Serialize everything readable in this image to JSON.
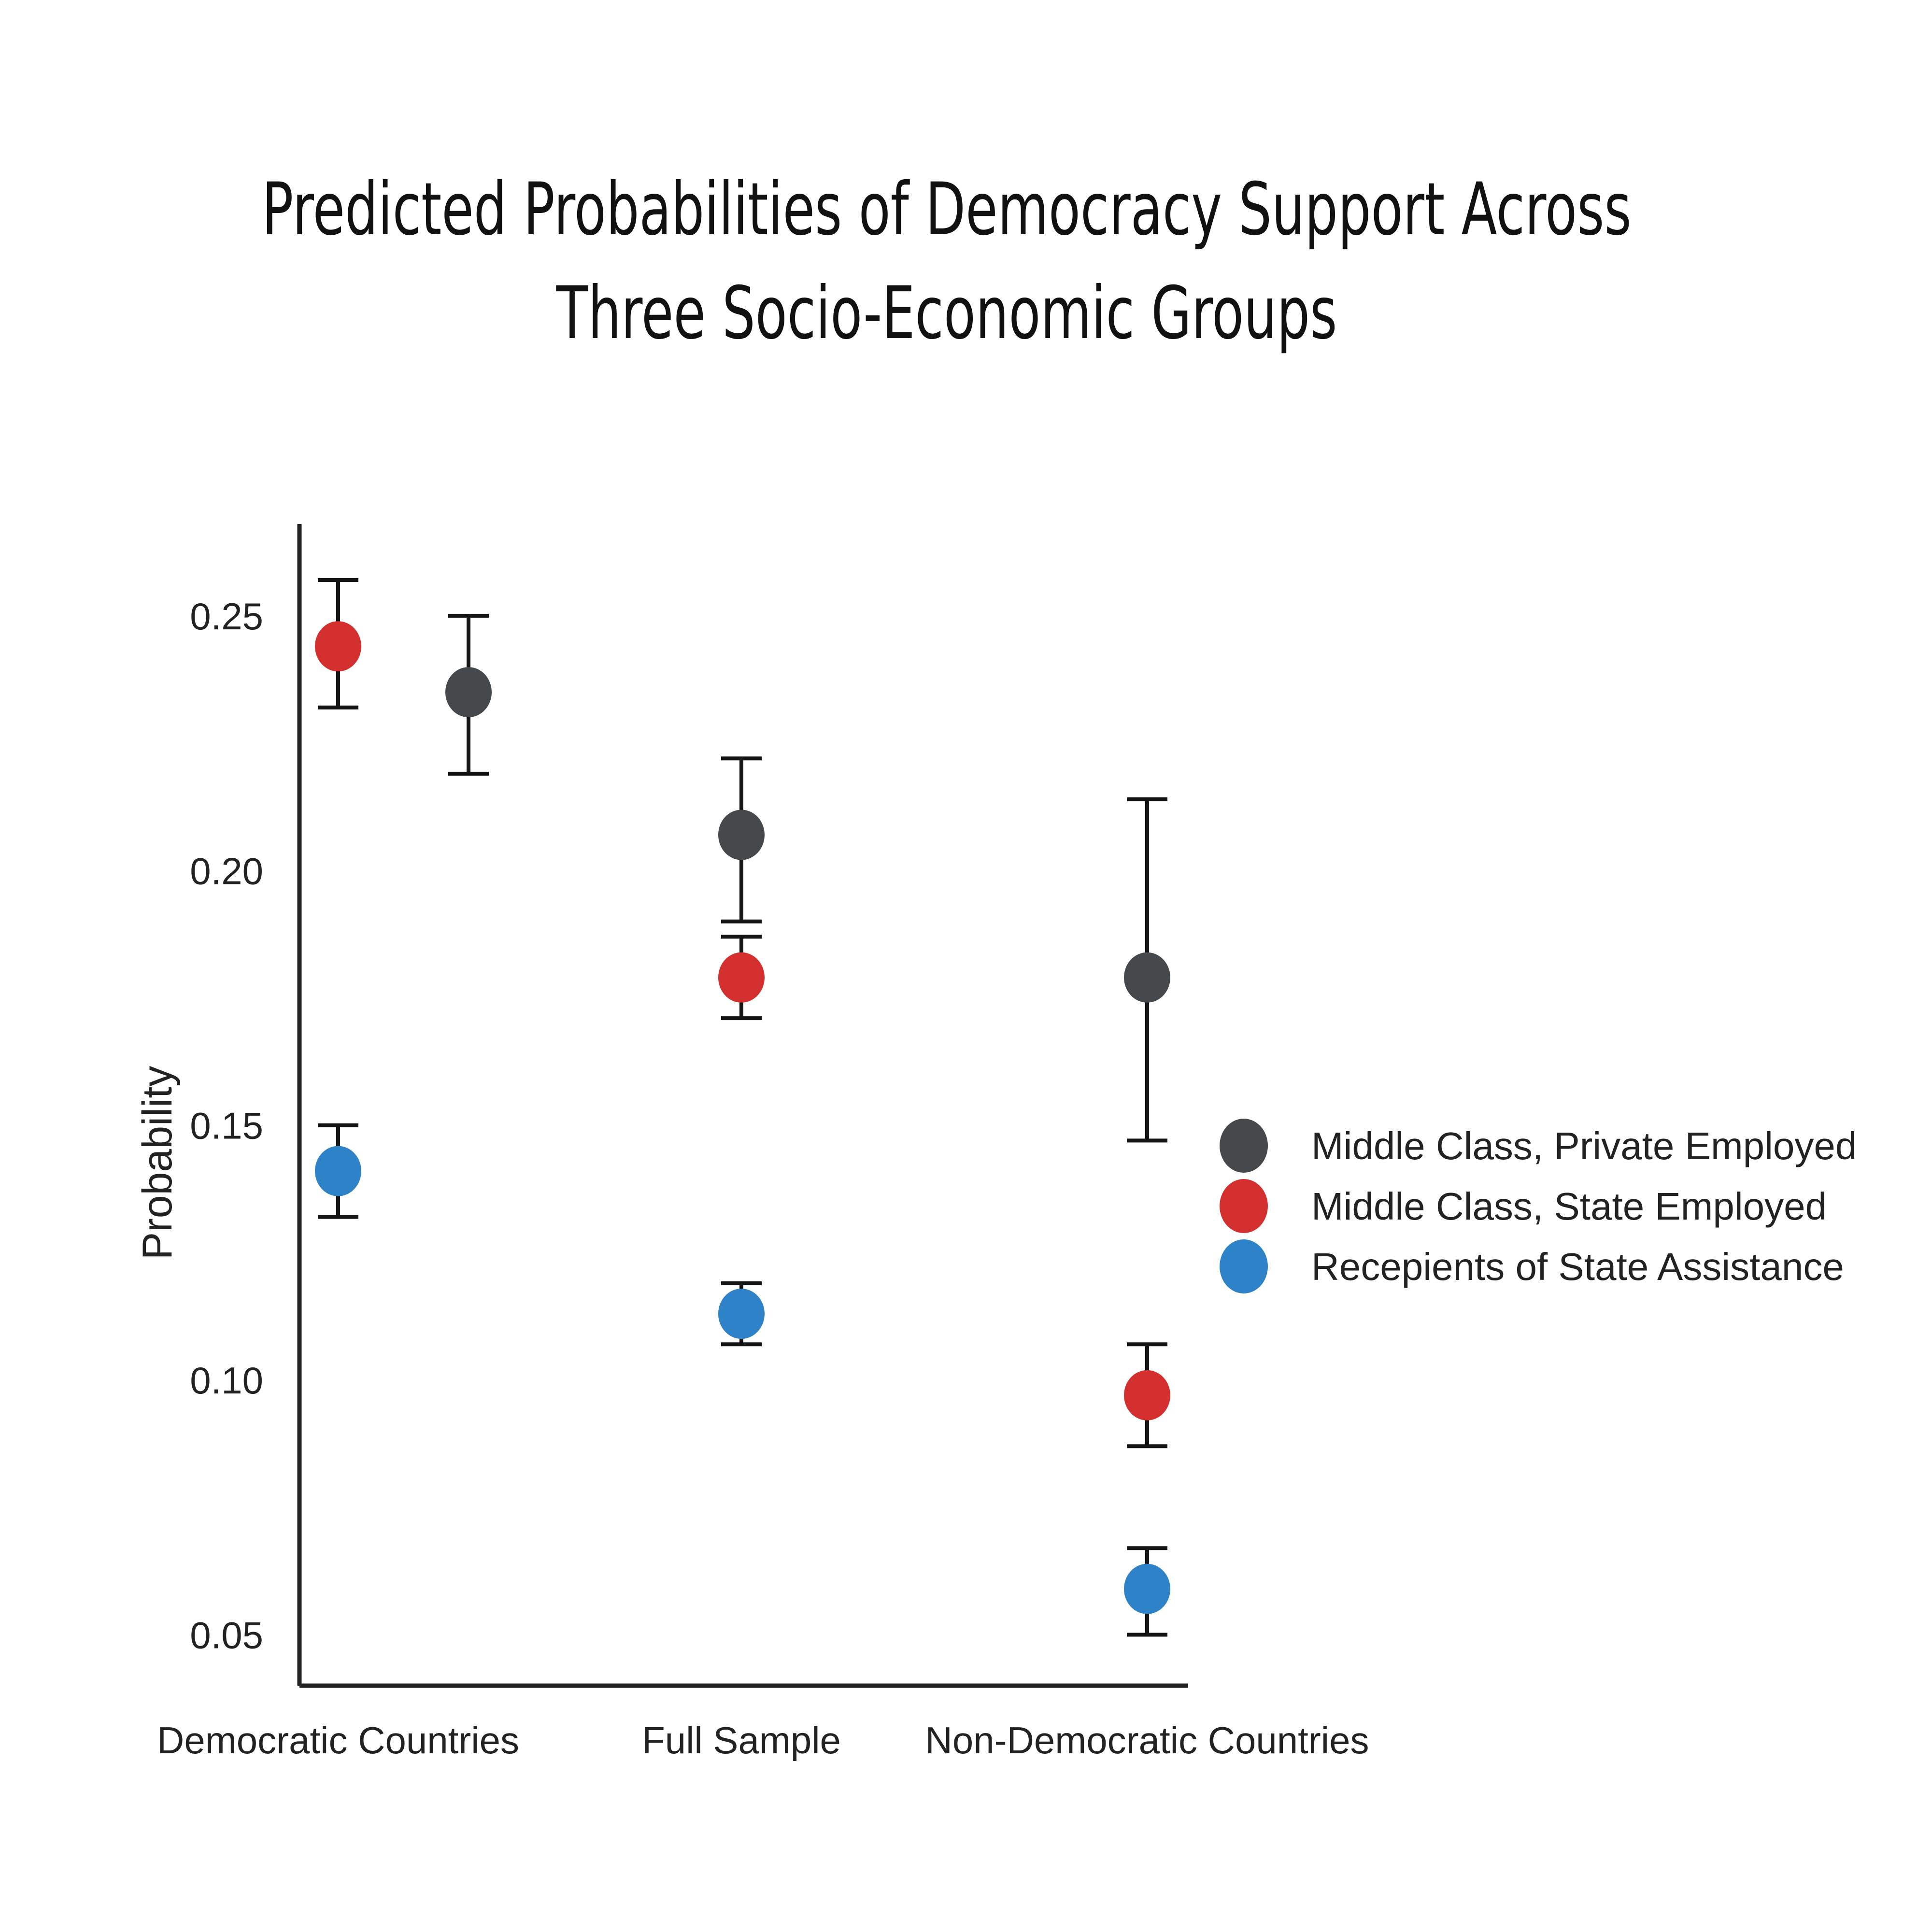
{
  "chart_data": {
    "type": "scatter",
    "title_lines": [
      "Predicted Probabilities of Democracy Support Across",
      "Three Socio-Economic Groups"
    ],
    "xlabel": "",
    "ylabel": "Probability",
    "categories": [
      "Democratic Countries",
      "Full Sample",
      "Non-Democratic Countries"
    ],
    "yticks": [
      "0.05",
      "0.10",
      "0.15",
      "0.20",
      "0.25"
    ],
    "ylim": [
      0.04,
      0.268
    ],
    "legend_position": "right",
    "grid": false,
    "series": [
      {
        "name": "Middle Class, Private Employed",
        "color": "#46494b",
        "points": [
          {
            "category": "Democratic Countries",
            "value": 0.235,
            "lower": 0.219,
            "upper": 0.25
          },
          {
            "category": "Full Sample",
            "value": 0.207,
            "lower": 0.19,
            "upper": 0.222
          },
          {
            "category": "Non-Democratic Countries",
            "value": 0.179,
            "lower": 0.147,
            "upper": 0.214
          }
        ]
      },
      {
        "name": "Middle Class, State Employed",
        "color": "#d32f2f",
        "points": [
          {
            "category": "Democratic Countries",
            "value": 0.244,
            "lower": 0.232,
            "upper": 0.257
          },
          {
            "category": "Full Sample",
            "value": 0.179,
            "lower": 0.171,
            "upper": 0.187
          },
          {
            "category": "Non-Democratic Countries",
            "value": 0.097,
            "lower": 0.087,
            "upper": 0.107
          }
        ]
      },
      {
        "name": "Recepients of State Assistance",
        "color": "#2e82c8",
        "points": [
          {
            "category": "Democratic Countries",
            "value": 0.141,
            "lower": 0.132,
            "upper": 0.15
          },
          {
            "category": "Full Sample",
            "value": 0.113,
            "lower": 0.107,
            "upper": 0.119
          },
          {
            "category": "Non-Democratic Countries",
            "value": 0.059,
            "lower": 0.05,
            "upper": 0.067
          }
        ]
      }
    ]
  }
}
